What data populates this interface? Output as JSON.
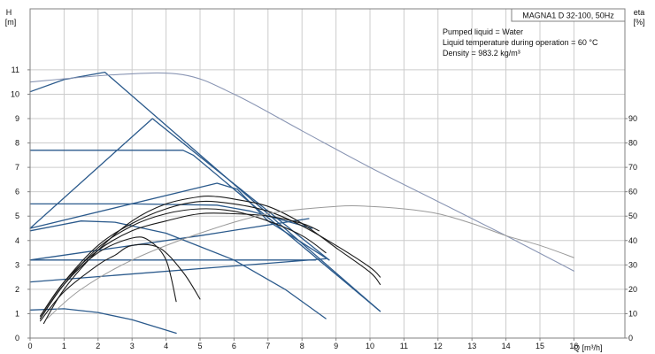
{
  "chart_data": {
    "type": "line",
    "title": "MAGNA1 D 32-100, 50Hz",
    "info": [
      "Pumped liquid = Water",
      "Liquid temperature during operation = 60 °C",
      "Density = 983.2 kg/m³"
    ],
    "y_label": [
      "H",
      "[m]"
    ],
    "y2_label": [
      "eta",
      "[%]"
    ],
    "x_label": "Q [m³/h]",
    "x_ticks": [
      "0",
      "1",
      "2",
      "3",
      "4",
      "5",
      "6",
      "7",
      "8",
      "9",
      "10",
      "11",
      "12",
      "13",
      "14",
      "15",
      "16"
    ],
    "y_ticks": [
      "0",
      "1",
      "2",
      "3",
      "4",
      "5",
      "6",
      "7",
      "8",
      "9",
      "10",
      "11"
    ],
    "y2_ticks": [
      "0",
      "10",
      "20",
      "30",
      "40",
      "50",
      "60",
      "70",
      "80",
      "90"
    ],
    "xlim": [
      0,
      17.5
    ],
    "ylim": [
      0,
      13.5
    ],
    "y2lim": [
      0,
      135
    ],
    "grid": true,
    "colors": {
      "pump_curve": "#2b5a8c",
      "twin_curve": "#8a96b4",
      "efficiency": "#1a1a1a",
      "efficiency_light": "#9a9a9a",
      "grid": "#cccccc",
      "frame": "#808080"
    },
    "series": [
      {
        "role": "pump_curve",
        "points": [
          [
            0,
            10.1
          ],
          [
            1,
            10.6
          ],
          [
            2.2,
            10.9
          ],
          [
            10.3,
            1.1
          ]
        ]
      },
      {
        "role": "pump_curve",
        "points": [
          [
            0,
            4.5
          ],
          [
            3.6,
            9.0
          ],
          [
            8.8,
            3.2
          ]
        ]
      },
      {
        "role": "pump_curve",
        "points": [
          [
            0,
            7.7
          ],
          [
            4.5,
            7.7
          ],
          [
            4.8,
            7.5
          ],
          [
            10.3,
            1.1
          ]
        ]
      },
      {
        "role": "pump_curve",
        "points": [
          [
            0,
            4.5
          ],
          [
            5.5,
            6.35
          ],
          [
            6.1,
            6.1
          ],
          [
            7.0,
            4.8
          ],
          [
            8.8,
            3.2
          ]
        ]
      },
      {
        "role": "pump_curve",
        "points": [
          [
            0,
            5.5
          ],
          [
            3,
            5.5
          ],
          [
            5.5,
            5.45
          ],
          [
            6.5,
            5.2
          ],
          [
            8.3,
            4.5
          ]
        ]
      },
      {
        "role": "pump_curve",
        "points": [
          [
            0,
            3.2
          ],
          [
            8.4,
            3.2
          ]
        ]
      },
      {
        "role": "pump_curve",
        "points": [
          [
            0,
            3.2
          ],
          [
            5,
            4.2
          ],
          [
            8.2,
            4.9
          ]
        ]
      },
      {
        "role": "pump_curve",
        "points": [
          [
            0,
            2.3
          ],
          [
            8.7,
            3.25
          ]
        ]
      },
      {
        "role": "pump_curve",
        "points": [
          [
            0,
            4.4
          ],
          [
            1.5,
            4.8
          ],
          [
            2.5,
            4.75
          ],
          [
            4,
            4.3
          ],
          [
            6,
            3.2
          ],
          [
            7.5,
            2.0
          ],
          [
            8.7,
            0.8
          ]
        ]
      },
      {
        "role": "pump_curve",
        "points": [
          [
            0,
            1.15
          ],
          [
            1,
            1.2
          ],
          [
            2,
            1.05
          ],
          [
            3,
            0.75
          ],
          [
            4.3,
            0.2
          ]
        ]
      },
      {
        "role": "twin_curve",
        "points": [
          [
            0,
            10.5
          ],
          [
            2.5,
            10.8
          ],
          [
            4.5,
            10.8
          ],
          [
            6,
            10.0
          ],
          [
            8,
            8.5
          ],
          [
            10,
            7.0
          ],
          [
            12,
            5.6
          ],
          [
            14,
            4.2
          ],
          [
            16,
            2.75
          ]
        ]
      },
      {
        "role": "efficiency",
        "points": [
          [
            0.3,
            9
          ],
          [
            1,
            23
          ],
          [
            2,
            38
          ],
          [
            3,
            47
          ],
          [
            4,
            53
          ],
          [
            5,
            56
          ],
          [
            6,
            55
          ],
          [
            7,
            52
          ],
          [
            8,
            46
          ],
          [
            9,
            38
          ],
          [
            10,
            29
          ],
          [
            10.3,
            25
          ]
        ]
      },
      {
        "role": "efficiency",
        "points": [
          [
            0.3,
            8
          ],
          [
            1,
            22
          ],
          [
            2,
            37
          ],
          [
            3,
            46
          ],
          [
            4,
            51
          ],
          [
            5,
            53
          ],
          [
            6,
            52
          ],
          [
            7,
            48
          ],
          [
            8,
            42
          ],
          [
            8.7,
            35
          ]
        ]
      },
      {
        "role": "efficiency",
        "points": [
          [
            0.3,
            9
          ],
          [
            1,
            23
          ],
          [
            2,
            36
          ],
          [
            3,
            44
          ],
          [
            4,
            48
          ],
          [
            5,
            51
          ],
          [
            6,
            51
          ],
          [
            7,
            50
          ],
          [
            8,
            47
          ],
          [
            8.5,
            44
          ]
        ]
      },
      {
        "role": "efficiency",
        "points": [
          [
            0.3,
            7
          ],
          [
            1,
            19
          ],
          [
            2,
            30
          ],
          [
            2.5,
            34
          ],
          [
            3,
            38
          ],
          [
            3.8,
            37
          ],
          [
            4.5,
            27
          ],
          [
            5,
            16
          ]
        ]
      },
      {
        "role": "efficiency",
        "points": [
          [
            0.3,
            8
          ],
          [
            1,
            22
          ],
          [
            2,
            35
          ],
          [
            3,
            41
          ],
          [
            3.5,
            40
          ],
          [
            4,
            32
          ],
          [
            4.3,
            15
          ]
        ]
      },
      {
        "role": "efficiency",
        "points": [
          [
            0.4,
            6
          ],
          [
            1,
            20
          ],
          [
            2,
            36
          ],
          [
            3,
            48
          ],
          [
            4,
            55
          ],
          [
            5,
            58
          ],
          [
            5.5,
            58
          ],
          [
            6,
            57
          ],
          [
            7,
            54
          ],
          [
            8,
            47
          ],
          [
            9,
            37
          ],
          [
            10,
            27
          ],
          [
            10.3,
            22
          ]
        ]
      },
      {
        "role": "efficiency_light",
        "points": [
          [
            0.5,
            8
          ],
          [
            1.5,
            20
          ],
          [
            3,
            32
          ],
          [
            5,
            43
          ],
          [
            7,
            51
          ],
          [
            9,
            54
          ],
          [
            10,
            54
          ],
          [
            11,
            53
          ],
          [
            12,
            51
          ],
          [
            13,
            47
          ],
          [
            14,
            42
          ],
          [
            15,
            38
          ],
          [
            16,
            33
          ]
        ]
      }
    ]
  }
}
